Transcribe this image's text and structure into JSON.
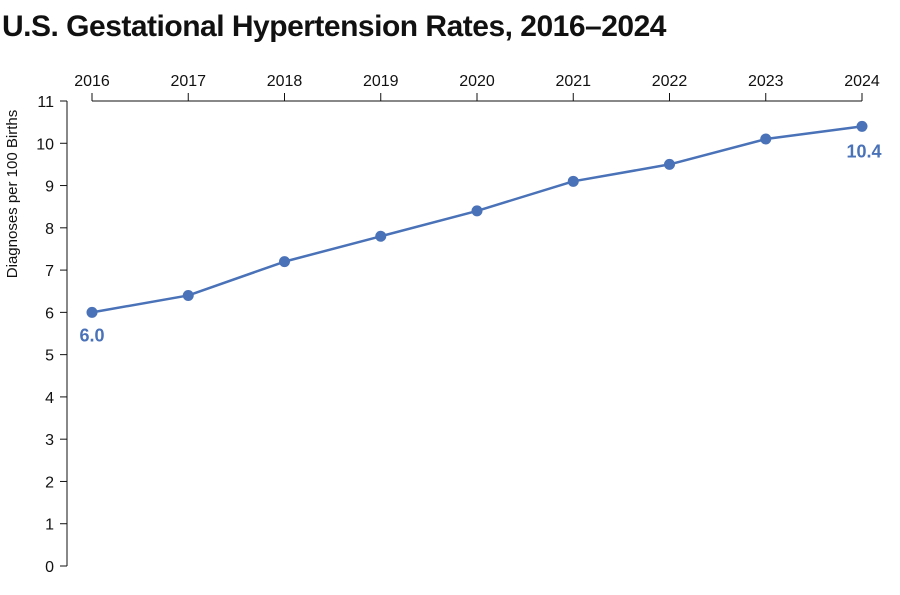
{
  "chart_data": {
    "type": "line",
    "title": "U.S. Gestational Hypertension Rates, 2016–2024",
    "ylabel": "Diagnoses per 100 Births",
    "xlabel": "",
    "x": [
      "2016",
      "2017",
      "2018",
      "2019",
      "2020",
      "2021",
      "2022",
      "2023",
      "2024"
    ],
    "series": [
      {
        "values": [
          6.0,
          6.4,
          7.2,
          7.8,
          8.4,
          9.1,
          9.5,
          10.1,
          10.4
        ]
      }
    ],
    "ylim": [
      0,
      11
    ],
    "yticks": [
      0,
      1,
      2,
      3,
      4,
      5,
      6,
      7,
      8,
      9,
      10,
      11
    ],
    "x_axis_position": "top",
    "grid": false,
    "annotations": [
      {
        "x": "2016",
        "text": "6.0"
      },
      {
        "x": "2024",
        "text": "10.4"
      }
    ],
    "colors": {
      "line": "#4a72b8",
      "axis": "#111111"
    }
  }
}
